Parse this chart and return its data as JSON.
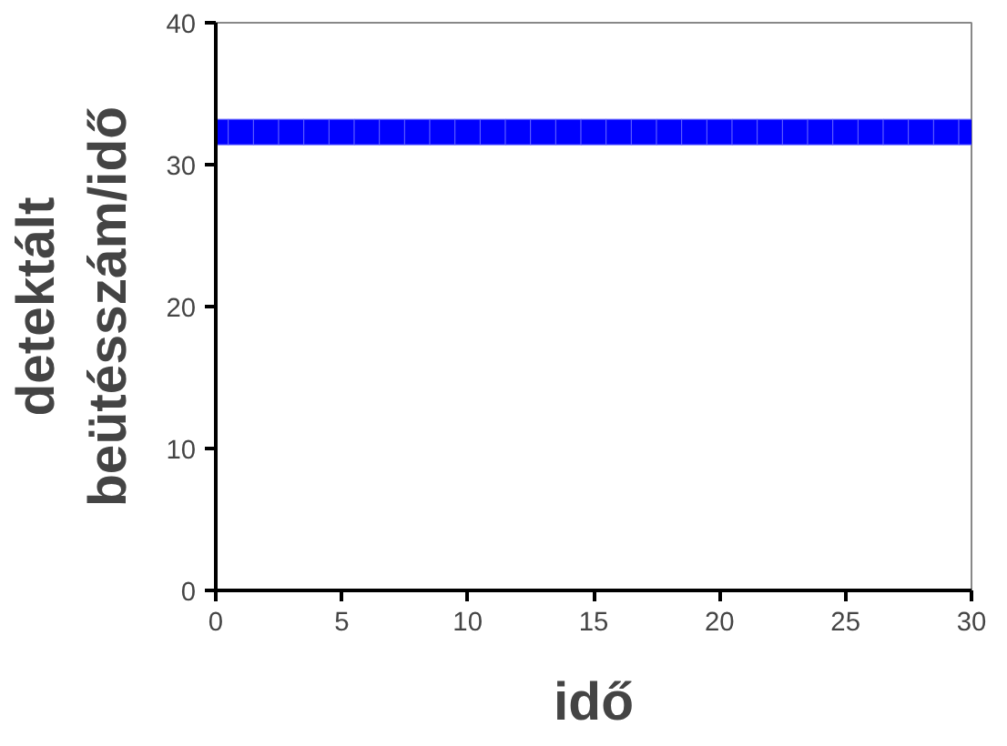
{
  "chart_data": {
    "type": "scatter",
    "xlabel": "idő",
    "ylabel": "detektált\nbeütésszám/idő",
    "x": [
      0,
      1,
      2,
      3,
      4,
      5,
      6,
      7,
      8,
      9,
      10,
      11,
      12,
      13,
      14,
      15,
      16,
      17,
      18,
      19,
      20,
      21,
      22,
      23,
      24,
      25,
      26,
      27,
      28,
      29,
      30
    ],
    "series": [
      {
        "color": "#0000ff",
        "values": [
          32.3,
          32.3,
          32.3,
          32.3,
          32.3,
          32.3,
          32.3,
          32.3,
          32.3,
          32.3,
          32.3,
          32.3,
          32.3,
          32.3,
          32.3,
          32.3,
          32.3,
          32.3,
          32.3,
          32.3,
          32.3,
          32.3,
          32.3,
          32.3,
          32.3,
          32.3,
          32.3,
          32.3,
          32.3,
          32.3,
          32.3
        ]
      }
    ],
    "xlim": [
      0,
      30
    ],
    "ylim": [
      0,
      40
    ],
    "xticks": [
      0,
      5,
      10,
      15,
      20,
      25,
      30
    ],
    "yticks": [
      0,
      10,
      20,
      30,
      40
    ],
    "marker": "square",
    "grid": false
  }
}
